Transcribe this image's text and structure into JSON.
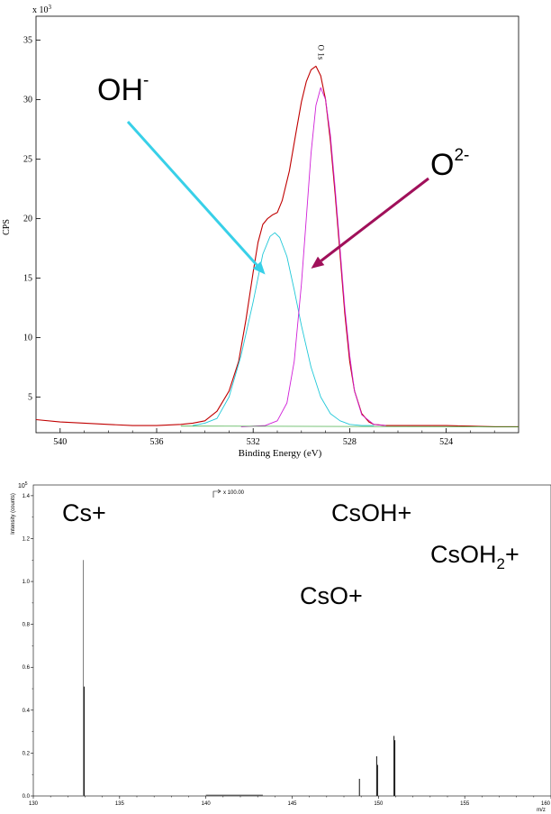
{
  "chart_data": [
    {
      "type": "line",
      "title": "",
      "multiplier_label": "x 10",
      "multiplier_exp": "3",
      "xlabel": "Binding Energy (eV)",
      "ylabel": "CPS",
      "x_reversed": true,
      "xlim": [
        541,
        521
      ],
      "ylim": [
        2,
        37
      ],
      "x_ticks": [
        540,
        536,
        532,
        528,
        524
      ],
      "y_ticks": [
        5,
        10,
        15,
        20,
        25,
        30,
        35
      ],
      "peak_label": "O 1s",
      "peak_label_x": 529.3,
      "series": [
        {
          "color": "#c00000",
          "x": [
            541,
            540,
            539,
            538,
            537,
            536,
            535,
            534.5,
            534,
            533.5,
            533,
            532.6,
            532.3,
            532,
            531.8,
            531.6,
            531.4,
            531.2,
            531,
            530.8,
            530.5,
            530.2,
            530,
            529.8,
            529.6,
            529.4,
            529.2,
            529,
            528.8,
            528.6,
            528.4,
            528.2,
            528,
            527.8,
            527.5,
            527.2,
            527,
            526.5,
            526,
            525,
            524,
            523,
            522,
            521
          ],
          "y": [
            3.1,
            2.9,
            2.8,
            2.7,
            2.6,
            2.6,
            2.7,
            2.8,
            3.0,
            3.8,
            5.5,
            8.0,
            11.5,
            15.5,
            18.0,
            19.5,
            20.0,
            20.3,
            20.5,
            21.5,
            24.0,
            27.5,
            29.8,
            31.5,
            32.5,
            32.8,
            32.0,
            30.0,
            26.5,
            22.0,
            17.0,
            12.0,
            8.0,
            5.5,
            3.6,
            2.9,
            2.7,
            2.6,
            2.6,
            2.6,
            2.6,
            2.55,
            2.5,
            2.5
          ]
        },
        {
          "color": "#20c8d8",
          "x": [
            534.5,
            534,
            533.5,
            533,
            532.5,
            532,
            531.6,
            531.3,
            531.1,
            530.9,
            530.6,
            530.3,
            530,
            529.6,
            529.2,
            528.8,
            528.4,
            528,
            527.5,
            527
          ],
          "y": [
            2.6,
            2.8,
            3.2,
            5.0,
            8.5,
            13.0,
            17.0,
            18.5,
            18.8,
            18.4,
            16.8,
            14.0,
            11.0,
            7.5,
            5.0,
            3.6,
            3.0,
            2.7,
            2.6,
            2.6
          ]
        },
        {
          "color": "#d020d8",
          "x": [
            532.5,
            531.5,
            531,
            530.6,
            530.3,
            530,
            529.8,
            529.6,
            529.4,
            529.2,
            529,
            528.8,
            528.6,
            528.4,
            528.2,
            528,
            527.8,
            527.5,
            527,
            526.5
          ],
          "y": [
            2.5,
            2.6,
            3.0,
            4.5,
            8.0,
            14.5,
            20.0,
            25.5,
            29.5,
            31.0,
            30.0,
            27.0,
            22.5,
            17.5,
            12.5,
            8.5,
            5.5,
            3.5,
            2.7,
            2.6
          ]
        }
      ],
      "annotations": [
        {
          "text": "OH",
          "sup": "-",
          "arrow_color": "#38d0e8",
          "arrow_to": [
            531.5,
            15.3
          ]
        },
        {
          "text": "O",
          "sup": "2-",
          "arrow_color": "#a0105a",
          "arrow_to": [
            529.6,
            15.8
          ]
        }
      ]
    },
    {
      "type": "bar",
      "title": "",
      "multiplier_label": "x 100.00",
      "y_multiplier": "10",
      "y_multiplier_exp": "5",
      "xlabel": "m/z",
      "ylabel": "Intensity (counts)",
      "xlim": [
        130,
        160
      ],
      "ylim": [
        0,
        1.45
      ],
      "x_ticks": [
        130,
        135,
        140,
        145,
        150,
        155,
        160
      ],
      "y_ticks": [
        0.0,
        0.2,
        0.4,
        0.6,
        0.8,
        1.0,
        1.2,
        1.4
      ],
      "y_tick_labels": [
        "0.0",
        "0.2",
        "0.4",
        "0.6",
        "0.8",
        "1.0",
        "1.2",
        "1.4"
      ],
      "x_tick_labels": [
        "130",
        "135",
        "140",
        "145",
        "150",
        "155",
        "160"
      ],
      "peaks": [
        {
          "x": 132.9,
          "y": 1.1
        },
        {
          "x": 132.95,
          "y": 0.51
        },
        {
          "x": 148.9,
          "y": 0.08
        },
        {
          "x": 149.9,
          "y": 0.185
        },
        {
          "x": 149.95,
          "y": 0.145
        },
        {
          "x": 150.9,
          "y": 0.28
        },
        {
          "x": 150.95,
          "y": 0.26
        }
      ],
      "annotations": [
        {
          "text": "Cs+",
          "sub": "",
          "tail": ""
        },
        {
          "text": "CsOH+",
          "sub": "",
          "tail": ""
        },
        {
          "text": "CsOH",
          "sub": "2",
          "tail": "+"
        },
        {
          "text": "CsO+",
          "sub": "",
          "tail": ""
        }
      ]
    }
  ]
}
